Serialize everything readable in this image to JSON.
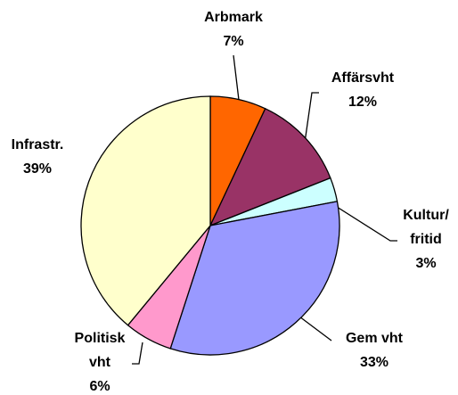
{
  "chart_data": {
    "type": "pie",
    "categories": [
      "Arbmark",
      "Affärsvht",
      "Kultur/\nfritid",
      "Gem vht",
      "Politisk\nvht",
      "Infrastr."
    ],
    "values": [
      7,
      12,
      3,
      33,
      6,
      39
    ],
    "value_labels": [
      "7%",
      "12%",
      "3%",
      "33%",
      "6%",
      "39%"
    ],
    "colors": [
      "#ff6600",
      "#993366",
      "#ccffff",
      "#9999ff",
      "#ff99cc",
      "#ffffcc"
    ]
  }
}
